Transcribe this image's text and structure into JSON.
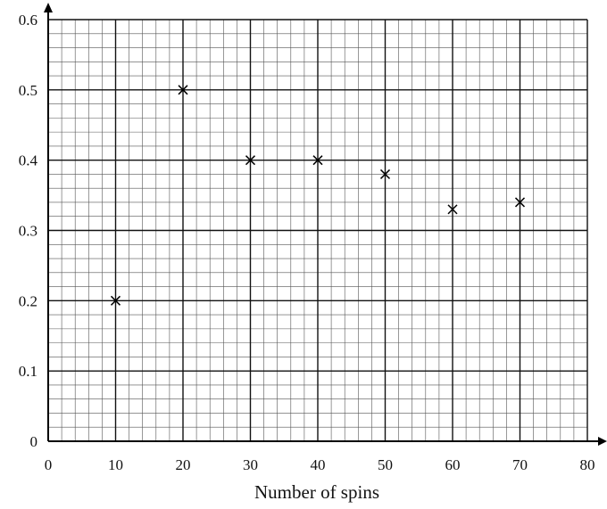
{
  "chart_data": {
    "type": "scatter",
    "title": "",
    "xlabel": "Number of spins",
    "ylabel": "",
    "xlim": [
      0,
      80
    ],
    "ylim": [
      0,
      0.6
    ],
    "x_ticks": [
      "0",
      "10",
      "20",
      "30",
      "40",
      "50",
      "60",
      "70",
      "80"
    ],
    "y_ticks": [
      "0",
      "0.1",
      "0.2",
      "0.3",
      "0.4",
      "0.5",
      "0.6"
    ],
    "grid": true,
    "marker": "cross",
    "points": [
      {
        "x": 10,
        "y": 0.2
      },
      {
        "x": 20,
        "y": 0.5
      },
      {
        "x": 30,
        "y": 0.4
      },
      {
        "x": 40,
        "y": 0.4
      },
      {
        "x": 50,
        "y": 0.38
      },
      {
        "x": 60,
        "y": 0.33
      },
      {
        "x": 70,
        "y": 0.34
      }
    ],
    "colors": {
      "grid_minor": "#555555",
      "grid_major": "#111111",
      "axis": "#000000",
      "marker": "#000000"
    }
  }
}
